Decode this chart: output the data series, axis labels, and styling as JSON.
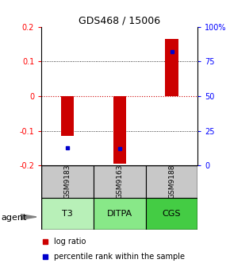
{
  "title": "GDS468 / 15006",
  "samples": [
    "GSM9183",
    "GSM9163",
    "GSM9188"
  ],
  "agents": [
    "T3",
    "DITPA",
    "CGS"
  ],
  "log_ratios": [
    -0.115,
    -0.195,
    0.165
  ],
  "percentile_ranks": [
    0.13,
    0.12,
    0.82
  ],
  "ylim_left": [
    -0.2,
    0.2
  ],
  "ylim_right": [
    0,
    1.0
  ],
  "yticks_left": [
    -0.2,
    -0.1,
    0.0,
    0.1,
    0.2
  ],
  "ytick_labels_left": [
    "-0.2",
    "-0.1",
    "0",
    "0.1",
    "0.2"
  ],
  "yticks_right": [
    0.0,
    0.25,
    0.5,
    0.75,
    1.0
  ],
  "ytick_labels_right": [
    "0",
    "25",
    "50",
    "75",
    "100%"
  ],
  "bar_color": "#cc0000",
  "dot_color": "#0000cc",
  "zero_line_color": "#cc0000",
  "sample_box_color": "#c8c8c8",
  "agent_colors": [
    "#b8f0b8",
    "#88e888",
    "#44cc44"
  ],
  "agent_label": "agent",
  "legend_log_ratio": "log ratio",
  "legend_percentile": "percentile rank within the sample",
  "bar_width": 0.25
}
